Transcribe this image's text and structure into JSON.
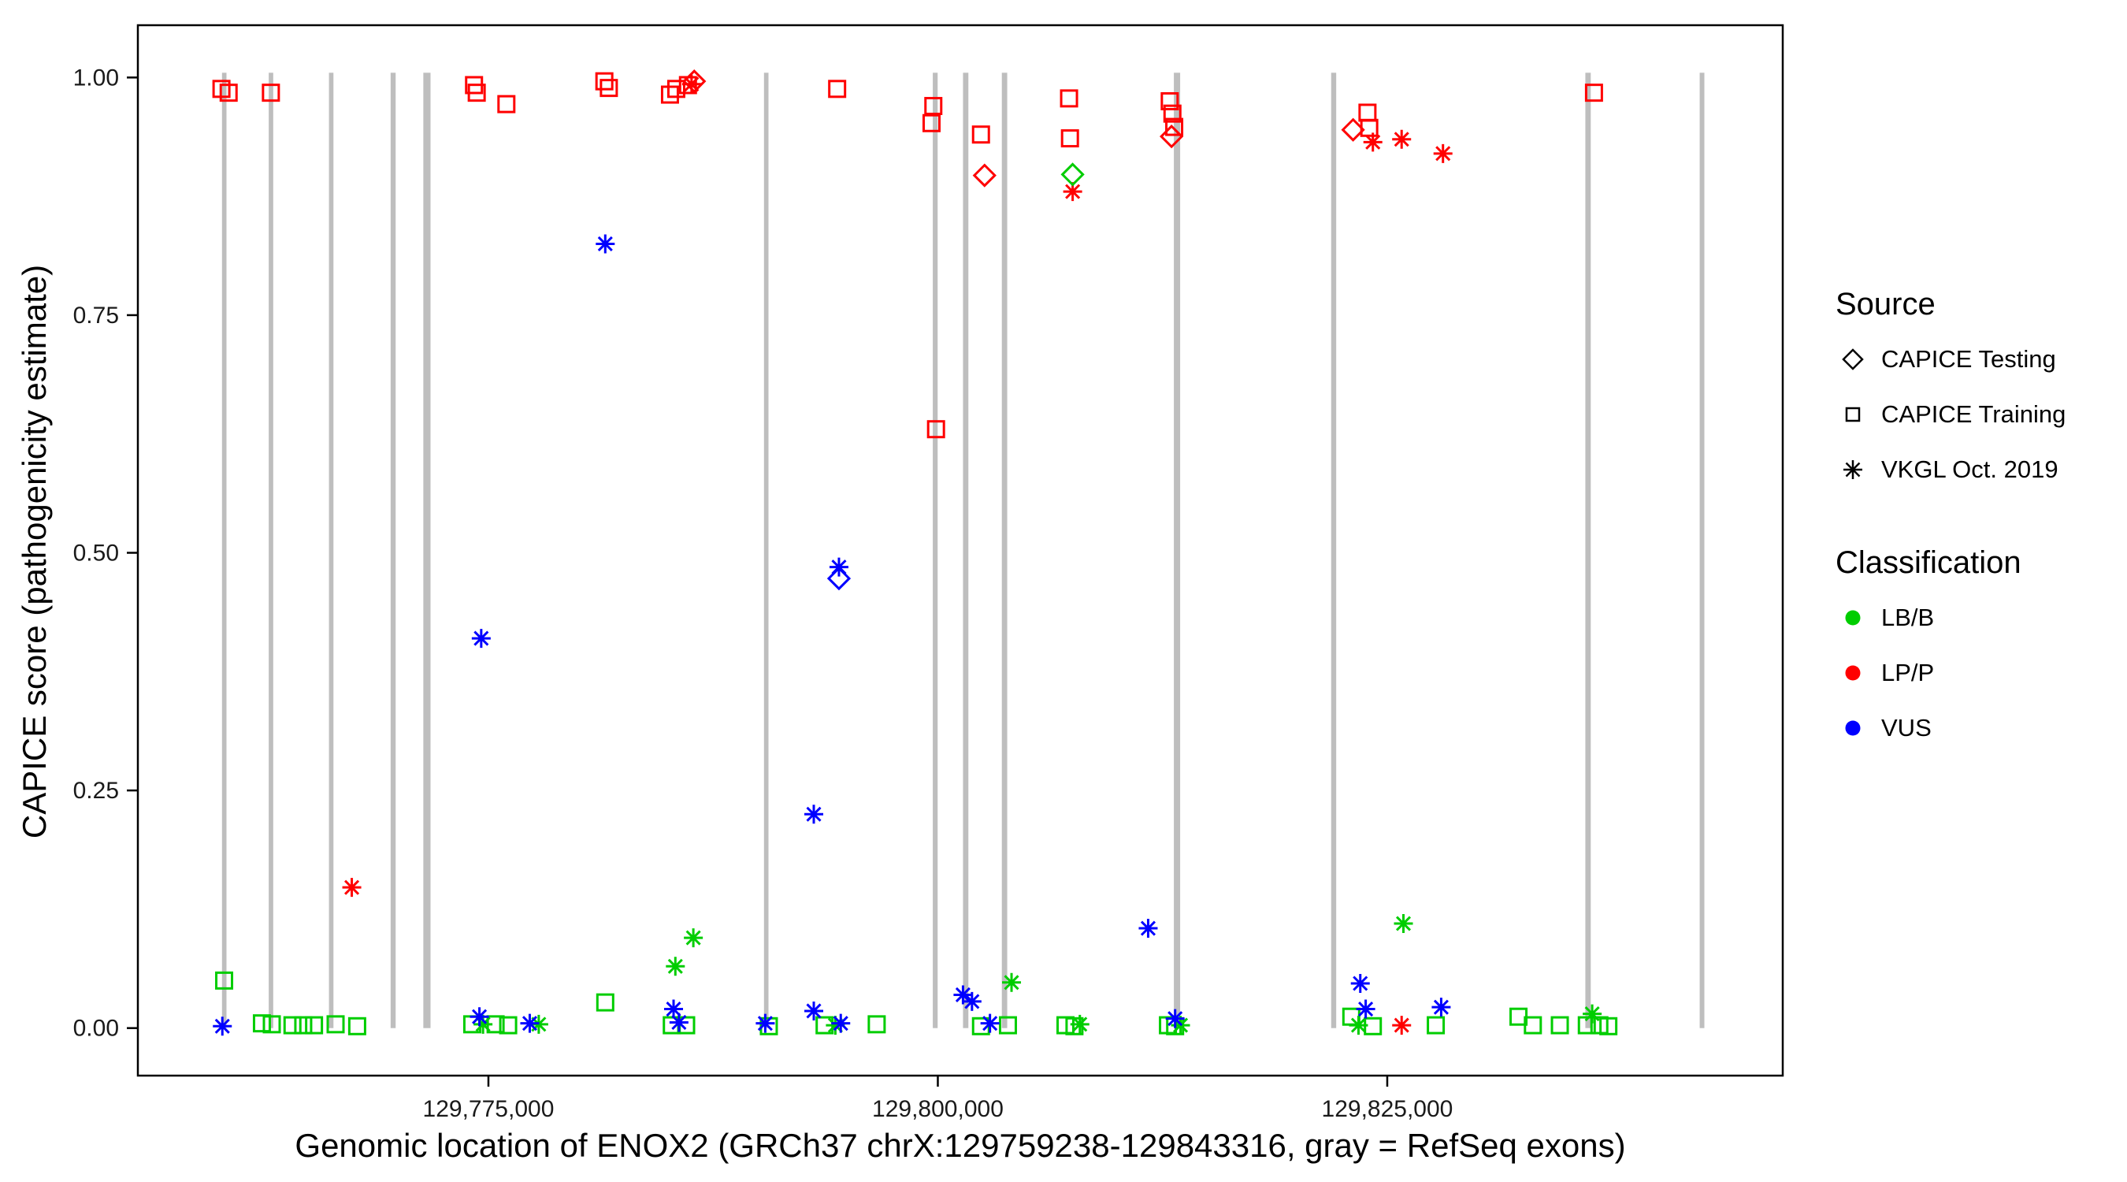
{
  "figure": {
    "background": "#FFFFFF"
  },
  "chart_data": {
    "type": "scatter",
    "title": "",
    "xlabel": "Genomic location of ENOX2 (GRCh37 chrX:129759238-129843316, gray = RefSeq exons)",
    "ylabel": "CAPICE score (pathogenicity estimate)",
    "x_domain": [
      129755500,
      129847000
    ],
    "y_domain": [
      -0.05,
      1.055
    ],
    "x_ticks": [
      {
        "value": 129775000,
        "label": "129,775,000"
      },
      {
        "value": 129800000,
        "label": "129,800,000"
      },
      {
        "value": 129825000,
        "label": "129,825,000"
      }
    ],
    "y_ticks": [
      {
        "value": 0.0,
        "label": "0.00"
      },
      {
        "value": 0.25,
        "label": "0.25"
      },
      {
        "value": 0.5,
        "label": "0.50"
      },
      {
        "value": 0.75,
        "label": "0.75"
      },
      {
        "value": 1.0,
        "label": "1.00"
      }
    ],
    "grid": false,
    "legend_position": "right",
    "exon_color": "#BEBEBE",
    "exons": [
      [
        129760180,
        129760430
      ],
      [
        129762780,
        129763030
      ],
      [
        129766130,
        129766380
      ],
      [
        129769560,
        129769840
      ],
      [
        129771380,
        129771780
      ],
      [
        129790330,
        129790580
      ],
      [
        129799720,
        129799990
      ],
      [
        129801400,
        129801700
      ],
      [
        129803560,
        129803860
      ],
      [
        129813130,
        129813480
      ],
      [
        129821880,
        129822160
      ],
      [
        129836020,
        129836320
      ],
      [
        129842380,
        129842640
      ]
    ],
    "classification_colors": {
      "LB/B": "#00CD00",
      "LP/P": "#FF0000",
      "VUS": "#0000FF"
    },
    "source_shapes": {
      "testing": "diamond",
      "training": "square",
      "vkgl": "asterisk"
    },
    "point_format": [
      "genomic_position",
      "capice_score",
      "classification",
      "source"
    ],
    "points": [
      [
        129760150,
        0.988,
        "LP/P",
        "training"
      ],
      [
        129760550,
        0.984,
        "LP/P",
        "training"
      ],
      [
        129762900,
        0.984,
        "LP/P",
        "training"
      ],
      [
        129774200,
        0.992,
        "LP/P",
        "training"
      ],
      [
        129774350,
        0.984,
        "LP/P",
        "training"
      ],
      [
        129776000,
        0.972,
        "LP/P",
        "training"
      ],
      [
        129781450,
        0.996,
        "LP/P",
        "training"
      ],
      [
        129781700,
        0.989,
        "LP/P",
        "training"
      ],
      [
        129785100,
        0.982,
        "LP/P",
        "training"
      ],
      [
        129785450,
        0.988,
        "LP/P",
        "training"
      ],
      [
        129786100,
        0.992,
        "LP/P",
        "training"
      ],
      [
        129794400,
        0.988,
        "LP/P",
        "training"
      ],
      [
        129799750,
        0.97,
        "LP/P",
        "training"
      ],
      [
        129799650,
        0.952,
        "LP/P",
        "training"
      ],
      [
        129799900,
        0.63,
        "LP/P",
        "training"
      ],
      [
        129802400,
        0.94,
        "LP/P",
        "training"
      ],
      [
        129807300,
        0.978,
        "LP/P",
        "training"
      ],
      [
        129807350,
        0.936,
        "LP/P",
        "training"
      ],
      [
        129812900,
        0.975,
        "LP/P",
        "training"
      ],
      [
        129813050,
        0.962,
        "LP/P",
        "training"
      ],
      [
        129813150,
        0.948,
        "LP/P",
        "training"
      ],
      [
        129823900,
        0.963,
        "LP/P",
        "training"
      ],
      [
        129824000,
        0.947,
        "LP/P",
        "training"
      ],
      [
        129836500,
        0.984,
        "LP/P",
        "training"
      ],
      [
        129786450,
        0.996,
        "LP/P",
        "testing"
      ],
      [
        129802600,
        0.897,
        "LP/P",
        "testing"
      ],
      [
        129813000,
        0.938,
        "LP/P",
        "testing"
      ],
      [
        129823100,
        0.945,
        "LP/P",
        "testing"
      ],
      [
        129786300,
        0.993,
        "LP/P",
        "vkgl"
      ],
      [
        129824200,
        0.932,
        "LP/P",
        "vkgl"
      ],
      [
        129825800,
        0.935,
        "LP/P",
        "vkgl"
      ],
      [
        129828100,
        0.92,
        "LP/P",
        "vkgl"
      ],
      [
        129807500,
        0.88,
        "LP/P",
        "vkgl"
      ],
      [
        129767400,
        0.148,
        "LP/P",
        "vkgl"
      ],
      [
        129825800,
        0.003,
        "LP/P",
        "vkgl"
      ],
      [
        129807500,
        0.898,
        "LB/B",
        "testing"
      ],
      [
        129825900,
        0.11,
        "LB/B",
        "vkgl"
      ],
      [
        129786400,
        0.095,
        "LB/B",
        "vkgl"
      ],
      [
        129785400,
        0.065,
        "LB/B",
        "vkgl"
      ],
      [
        129804100,
        0.048,
        "LB/B",
        "vkgl"
      ],
      [
        129774700,
        0.004,
        "LB/B",
        "vkgl"
      ],
      [
        129777800,
        0.004,
        "LB/B",
        "vkgl"
      ],
      [
        129794300,
        0.003,
        "LB/B",
        "vkgl"
      ],
      [
        129807900,
        0.004,
        "LB/B",
        "vkgl"
      ],
      [
        129813500,
        0.003,
        "LB/B",
        "vkgl"
      ],
      [
        129823400,
        0.003,
        "LB/B",
        "vkgl"
      ],
      [
        129836400,
        0.015,
        "LB/B",
        "vkgl"
      ],
      [
        129760300,
        0.05,
        "LB/B",
        "training"
      ],
      [
        129762400,
        0.005,
        "LB/B",
        "training"
      ],
      [
        129762950,
        0.004,
        "LB/B",
        "training"
      ],
      [
        129764100,
        0.003,
        "LB/B",
        "training"
      ],
      [
        129764700,
        0.003,
        "LB/B",
        "training"
      ],
      [
        129765300,
        0.003,
        "LB/B",
        "training"
      ],
      [
        129766500,
        0.004,
        "LB/B",
        "training"
      ],
      [
        129767700,
        0.002,
        "LB/B",
        "training"
      ],
      [
        129774100,
        0.004,
        "LB/B",
        "training"
      ],
      [
        129775400,
        0.004,
        "LB/B",
        "training"
      ],
      [
        129776100,
        0.003,
        "LB/B",
        "training"
      ],
      [
        129781500,
        0.027,
        "LB/B",
        "training"
      ],
      [
        129785200,
        0.003,
        "LB/B",
        "training"
      ],
      [
        129786000,
        0.003,
        "LB/B",
        "training"
      ],
      [
        129790600,
        0.002,
        "LB/B",
        "training"
      ],
      [
        129793700,
        0.003,
        "LB/B",
        "training"
      ],
      [
        129796600,
        0.004,
        "LB/B",
        "training"
      ],
      [
        129802400,
        0.002,
        "LB/B",
        "training"
      ],
      [
        129803900,
        0.003,
        "LB/B",
        "training"
      ],
      [
        129807100,
        0.003,
        "LB/B",
        "training"
      ],
      [
        129807600,
        0.002,
        "LB/B",
        "training"
      ],
      [
        129812800,
        0.003,
        "LB/B",
        "training"
      ],
      [
        129813200,
        0.002,
        "LB/B",
        "training"
      ],
      [
        129823000,
        0.012,
        "LB/B",
        "training"
      ],
      [
        129824200,
        0.002,
        "LB/B",
        "training"
      ],
      [
        129827700,
        0.003,
        "LB/B",
        "training"
      ],
      [
        129832300,
        0.012,
        "LB/B",
        "training"
      ],
      [
        129833100,
        0.003,
        "LB/B",
        "training"
      ],
      [
        129834600,
        0.003,
        "LB/B",
        "training"
      ],
      [
        129836100,
        0.003,
        "LB/B",
        "training"
      ],
      [
        129836800,
        0.003,
        "LB/B",
        "training"
      ],
      [
        129837300,
        0.002,
        "LB/B",
        "training"
      ],
      [
        129781500,
        0.825,
        "VUS",
        "vkgl"
      ],
      [
        129794500,
        0.485,
        "VUS",
        "vkgl"
      ],
      [
        129774600,
        0.41,
        "VUS",
        "vkgl"
      ],
      [
        129793100,
        0.225,
        "VUS",
        "vkgl"
      ],
      [
        129811700,
        0.105,
        "VUS",
        "vkgl"
      ],
      [
        129801400,
        0.035,
        "VUS",
        "vkgl"
      ],
      [
        129801900,
        0.028,
        "VUS",
        "vkgl"
      ],
      [
        129823500,
        0.047,
        "VUS",
        "vkgl"
      ],
      [
        129828000,
        0.022,
        "VUS",
        "vkgl"
      ],
      [
        129760200,
        0.002,
        "VUS",
        "vkgl"
      ],
      [
        129774500,
        0.012,
        "VUS",
        "vkgl"
      ],
      [
        129777300,
        0.005,
        "VUS",
        "vkgl"
      ],
      [
        129785300,
        0.02,
        "VUS",
        "vkgl"
      ],
      [
        129785600,
        0.006,
        "VUS",
        "vkgl"
      ],
      [
        129790400,
        0.005,
        "VUS",
        "vkgl"
      ],
      [
        129793100,
        0.018,
        "VUS",
        "vkgl"
      ],
      [
        129794600,
        0.005,
        "VUS",
        "vkgl"
      ],
      [
        129802900,
        0.005,
        "VUS",
        "vkgl"
      ],
      [
        129813200,
        0.01,
        "VUS",
        "vkgl"
      ],
      [
        129823800,
        0.02,
        "VUS",
        "vkgl"
      ],
      [
        129794500,
        0.473,
        "VUS",
        "testing"
      ]
    ]
  },
  "legend": {
    "source": {
      "title": "Source",
      "items": [
        {
          "label": "CAPICE Testing",
          "shape": "diamond"
        },
        {
          "label": "CAPICE Training",
          "shape": "square"
        },
        {
          "label": "VKGL Oct. 2019",
          "shape": "asterisk"
        }
      ]
    },
    "classification": {
      "title": "Classification",
      "items": [
        {
          "label": "LB/B",
          "color": "#00CD00"
        },
        {
          "label": "LP/P",
          "color": "#FF0000"
        },
        {
          "label": "VUS",
          "color": "#0000FF"
        }
      ]
    }
  }
}
